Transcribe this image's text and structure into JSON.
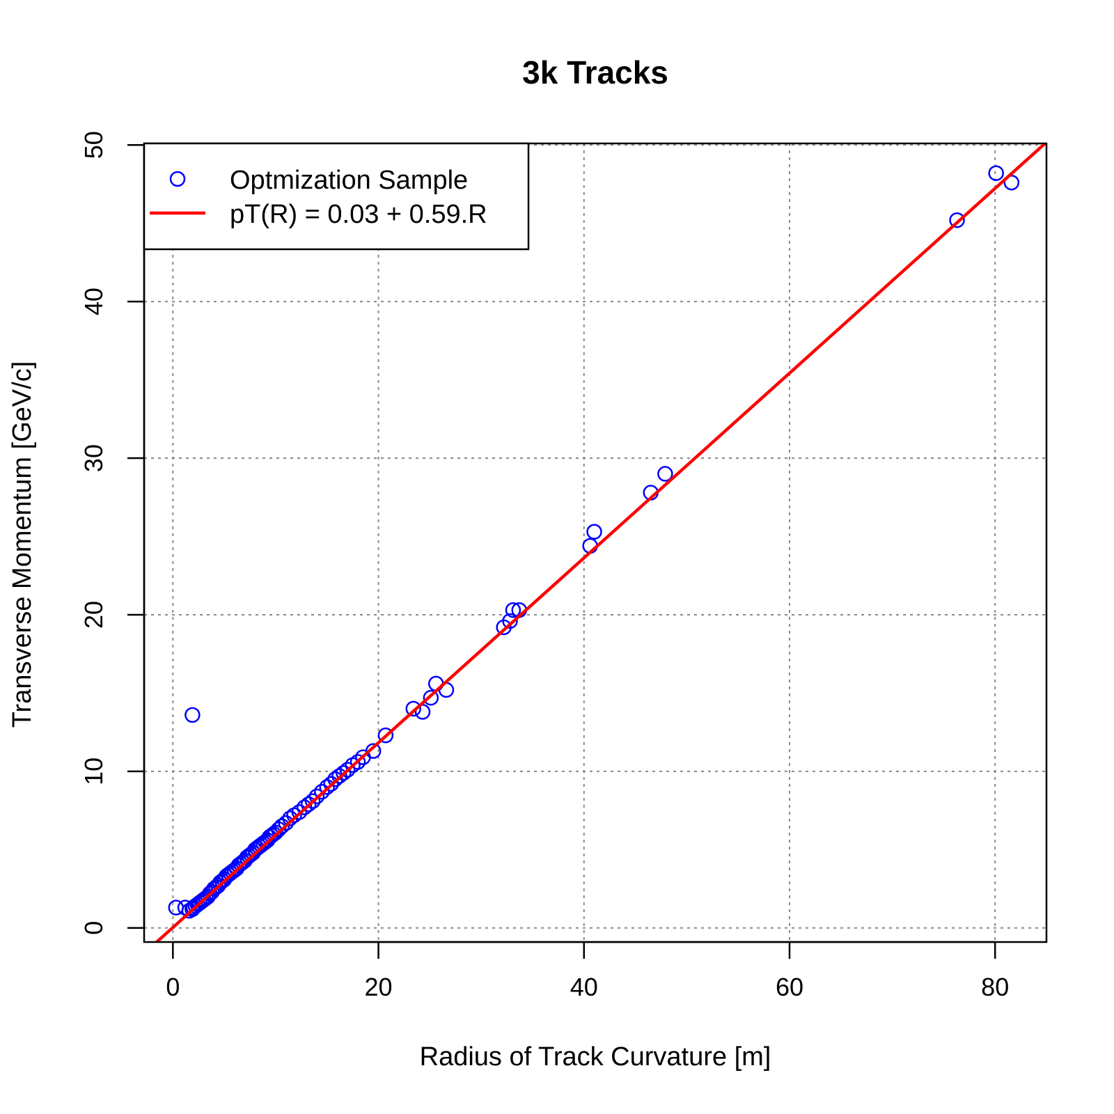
{
  "chart_data": {
    "type": "scatter",
    "title": "3k Tracks",
    "xlabel": "Radius of Track Curvature [m]",
    "ylabel": "Transverse Momentum [GeV/c]",
    "xlim": [
      -2.8,
      85
    ],
    "ylim": [
      -0.9,
      50.1
    ],
    "x_ticks": [
      0,
      20,
      40,
      60,
      80
    ],
    "y_ticks": [
      0,
      10,
      20,
      30,
      40,
      50
    ],
    "grid": true,
    "legend_position": "top-left",
    "series": [
      {
        "name": "Optmization Sample",
        "kind": "points",
        "marker": "open-circle",
        "color": "#0000ff",
        "x": [
          0.3,
          1.2,
          1.6,
          1.9,
          2.0,
          2.2,
          2.4,
          2.6,
          2.8,
          3.0,
          3.2,
          3.4,
          3.6,
          3.8,
          4.0,
          4.2,
          4.4,
          4.6,
          4.8,
          5.0,
          5.2,
          5.4,
          5.6,
          5.8,
          6.0,
          6.2,
          6.4,
          6.6,
          6.8,
          7.0,
          7.2,
          7.4,
          7.6,
          7.8,
          8.0,
          8.2,
          8.4,
          8.6,
          8.8,
          9.0,
          9.2,
          9.4,
          9.6,
          9.8,
          10.0,
          10.3,
          10.6,
          11.0,
          11.4,
          11.8,
          12.3,
          12.8,
          13.2,
          13.6,
          14.0,
          14.5,
          15.0,
          15.4,
          15.8,
          16.2,
          16.6,
          17.0,
          17.5,
          18.0,
          18.5,
          19.5,
          20.7,
          1.9,
          23.4,
          24.3,
          25.1,
          25.6,
          26.6,
          32.2,
          32.8,
          33.1,
          33.7,
          40.6,
          41.0,
          46.5,
          47.9,
          76.3,
          80.1,
          81.6
        ],
        "y": [
          1.3,
          1.3,
          1.1,
          1.2,
          1.3,
          1.4,
          1.5,
          1.6,
          1.7,
          1.8,
          1.9,
          2.0,
          2.2,
          2.3,
          2.5,
          2.6,
          2.7,
          2.9,
          3.0,
          3.1,
          3.3,
          3.4,
          3.5,
          3.6,
          3.7,
          3.8,
          4.0,
          4.1,
          4.2,
          4.3,
          4.5,
          4.6,
          4.7,
          4.8,
          5.0,
          5.1,
          5.2,
          5.3,
          5.4,
          5.5,
          5.6,
          5.8,
          5.9,
          6.0,
          6.1,
          6.3,
          6.5,
          6.7,
          7.0,
          7.2,
          7.4,
          7.7,
          7.9,
          8.1,
          8.4,
          8.7,
          9.0,
          9.2,
          9.5,
          9.7,
          9.9,
          10.1,
          10.4,
          10.6,
          10.9,
          11.3,
          12.3,
          13.6,
          14.0,
          13.8,
          14.7,
          15.6,
          15.2,
          19.2,
          19.6,
          20.3,
          20.3,
          24.4,
          25.3,
          27.8,
          29.0,
          45.2,
          48.2,
          47.6
        ]
      },
      {
        "name": "pT(R) = 0.03 + 0.59.R",
        "kind": "line",
        "color": "#ff0000",
        "intercept": 0.03,
        "slope": 0.59,
        "x": [
          -2.8,
          85
        ],
        "y": [
          -1.622,
          50.18
        ]
      }
    ]
  }
}
